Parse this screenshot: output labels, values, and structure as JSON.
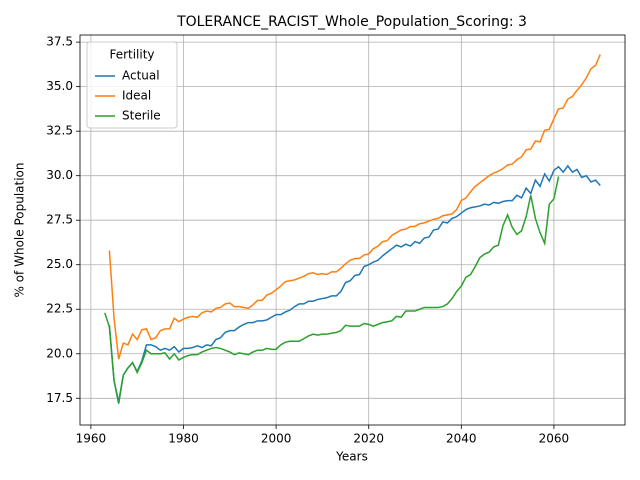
{
  "chart_data": {
    "type": "line",
    "title": "TOLERANCE_RACIST_Whole_Population_Scoring: 3",
    "xlabel": "Years",
    "ylabel": "% of Whole Population",
    "legend_title": "Fertility",
    "legend_loc": "upper left",
    "grid": true,
    "x": [
      1963,
      1964,
      1965,
      1966,
      1967,
      1968,
      1969,
      1970,
      1971,
      1972,
      1973,
      1974,
      1975,
      1976,
      1977,
      1978,
      1979,
      1980,
      1981,
      1982,
      1983,
      1984,
      1985,
      1986,
      1987,
      1988,
      1989,
      1990,
      1991,
      1992,
      1993,
      1994,
      1995,
      1996,
      1997,
      1998,
      1999,
      2000,
      2001,
      2002,
      2003,
      2004,
      2005,
      2006,
      2007,
      2008,
      2009,
      2010,
      2011,
      2012,
      2013,
      2014,
      2015,
      2016,
      2017,
      2018,
      2019,
      2020,
      2021,
      2022,
      2023,
      2024,
      2025,
      2026,
      2027,
      2028,
      2029,
      2030,
      2031,
      2032,
      2033,
      2034,
      2035,
      2036,
      2037,
      2038,
      2039,
      2040,
      2041,
      2042,
      2043,
      2044,
      2045,
      2046,
      2047,
      2048,
      2049,
      2050,
      2051,
      2052,
      2053,
      2054,
      2055,
      2056,
      2057,
      2058,
      2059,
      2060,
      2061,
      2062,
      2063,
      2064,
      2065,
      2066,
      2067,
      2068,
      2069,
      2070
    ],
    "series": [
      {
        "name": "Actual",
        "color": "#1f77b4",
        "values": [
          null,
          21.6,
          18.5,
          17.2,
          18.8,
          19.2,
          19.5,
          19.0,
          19.6,
          20.5,
          20.5,
          20.4,
          20.2,
          20.3,
          20.2,
          20.4,
          20.1,
          20.3,
          20.3,
          20.35,
          20.45,
          20.35,
          20.5,
          20.45,
          20.8,
          20.9,
          21.2,
          21.3,
          21.3,
          21.5,
          21.65,
          21.75,
          21.75,
          21.85,
          21.85,
          21.9,
          22.05,
          22.2,
          22.2,
          22.35,
          22.45,
          22.65,
          22.8,
          22.8,
          22.95,
          22.95,
          23.05,
          23.1,
          23.15,
          23.25,
          23.25,
          23.5,
          24.0,
          24.1,
          24.4,
          24.45,
          24.9,
          25.0,
          25.15,
          25.25,
          25.5,
          25.7,
          25.9,
          26.1,
          26.0,
          26.15,
          26.05,
          26.3,
          26.2,
          26.5,
          26.55,
          26.95,
          27.0,
          27.4,
          27.35,
          27.6,
          27.7,
          27.9,
          28.1,
          28.2,
          28.25,
          28.3,
          28.4,
          28.35,
          28.5,
          28.45,
          28.55,
          28.6,
          28.6,
          28.9,
          28.75,
          29.3,
          29.0,
          29.75,
          29.4,
          30.1,
          29.7,
          30.3,
          30.5,
          30.2,
          30.55,
          30.2,
          30.35,
          29.9,
          30.0,
          29.65,
          29.75,
          29.45
        ]
      },
      {
        "name": "Ideal",
        "color": "#ff7f0e",
        "values": [
          null,
          25.8,
          22.0,
          19.7,
          20.6,
          20.5,
          21.1,
          20.8,
          21.35,
          21.4,
          20.8,
          20.9,
          21.3,
          21.4,
          21.4,
          22.0,
          21.8,
          21.95,
          22.05,
          22.1,
          22.05,
          22.3,
          22.4,
          22.35,
          22.55,
          22.6,
          22.8,
          22.85,
          22.65,
          22.65,
          22.6,
          22.55,
          22.75,
          23.0,
          23.0,
          23.3,
          23.4,
          23.6,
          23.8,
          24.05,
          24.1,
          24.15,
          24.25,
          24.35,
          24.5,
          24.55,
          24.45,
          24.5,
          24.45,
          24.6,
          24.6,
          24.8,
          25.05,
          25.25,
          25.35,
          25.35,
          25.55,
          25.6,
          25.9,
          26.05,
          26.3,
          26.35,
          26.65,
          26.8,
          26.95,
          27.0,
          27.15,
          27.15,
          27.3,
          27.35,
          27.45,
          27.55,
          27.6,
          27.75,
          27.8,
          27.85,
          28.1,
          28.6,
          28.75,
          29.1,
          29.4,
          29.6,
          29.8,
          30.0,
          30.15,
          30.25,
          30.4,
          30.6,
          30.65,
          30.9,
          31.05,
          31.45,
          31.5,
          31.95,
          31.9,
          32.55,
          32.6,
          33.2,
          33.75,
          33.8,
          34.3,
          34.45,
          34.8,
          35.1,
          35.5,
          36.0,
          36.2,
          36.8
        ]
      },
      {
        "name": "Sterile",
        "color": "#2ca02c",
        "values": [
          22.3,
          21.5,
          18.5,
          17.3,
          18.8,
          19.2,
          19.5,
          18.95,
          19.5,
          20.2,
          20.0,
          20.0,
          20.0,
          20.05,
          19.7,
          20.0,
          19.65,
          19.8,
          19.9,
          19.95,
          19.95,
          20.1,
          20.2,
          20.3,
          20.35,
          20.3,
          20.2,
          20.1,
          19.95,
          20.05,
          20.0,
          19.95,
          20.1,
          20.2,
          20.2,
          20.3,
          20.25,
          20.25,
          20.5,
          20.65,
          20.7,
          20.7,
          20.7,
          20.85,
          21.0,
          21.1,
          21.05,
          21.1,
          21.1,
          21.15,
          21.2,
          21.3,
          21.6,
          21.55,
          21.55,
          21.55,
          21.7,
          21.65,
          21.55,
          21.65,
          21.75,
          21.8,
          21.85,
          22.1,
          22.05,
          22.4,
          22.4,
          22.4,
          22.5,
          22.6,
          22.6,
          22.6,
          22.6,
          22.65,
          22.8,
          23.1,
          23.5,
          23.8,
          24.3,
          24.45,
          24.9,
          25.4,
          25.6,
          25.7,
          26.0,
          26.1,
          27.2,
          27.8,
          27.1,
          26.7,
          26.9,
          27.7,
          28.9,
          27.6,
          26.8,
          26.2,
          28.4,
          28.7,
          29.95,
          null,
          null,
          null,
          null,
          null,
          null,
          null,
          null,
          null
        ]
      }
    ],
    "xlim": [
      1957.65,
      2075.35
    ],
    "xticks": [
      1960,
      1980,
      2000,
      2020,
      2040,
      2060
    ],
    "ylim": [
      16.0,
      37.9
    ],
    "yticks": [
      17.5,
      {
        "value": 20,
        "label": "20.0"
      },
      22.5,
      {
        "value": 25,
        "label": "25.0"
      },
      27.5,
      {
        "value": 30,
        "label": "30.0"
      },
      32.5,
      {
        "value": 35,
        "label": "35.0"
      },
      37.5
    ]
  }
}
